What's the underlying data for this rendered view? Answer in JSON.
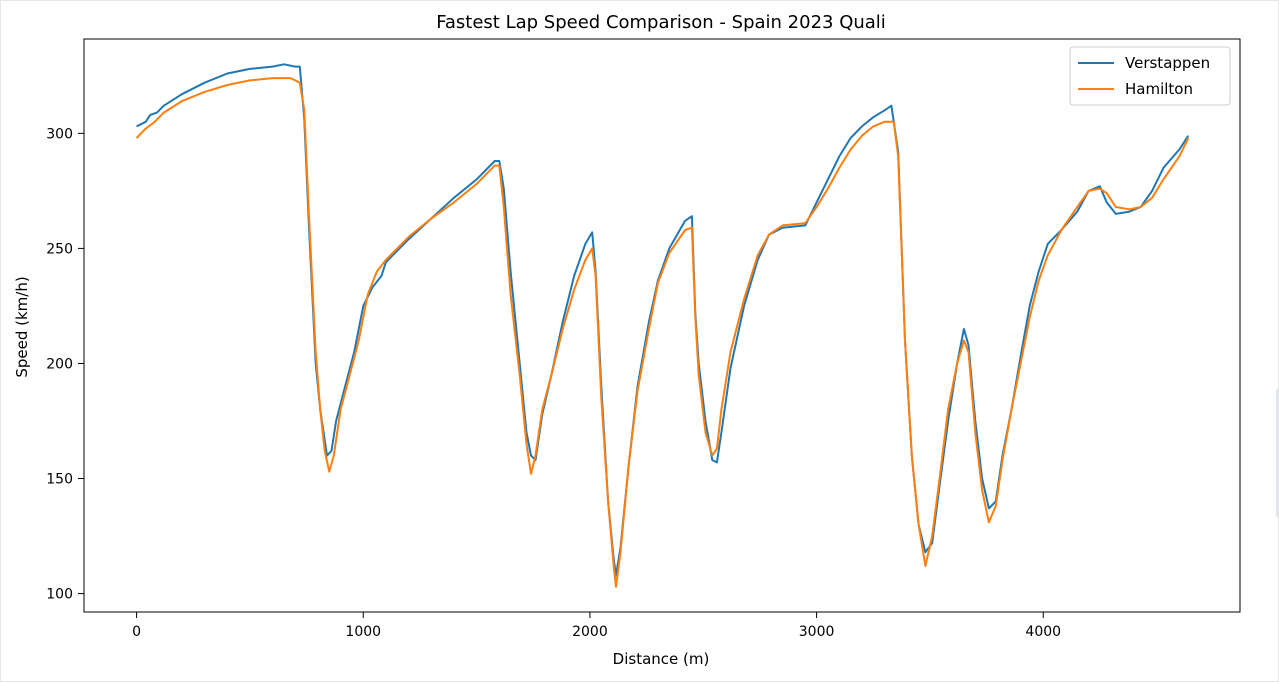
{
  "chart_data": {
    "type": "line",
    "title": "Fastest Lap Speed Comparison - Spain 2023 Quali",
    "xlabel": "Distance (m)",
    "ylabel": "Speed (km/h)",
    "xlim": [
      -232,
      4868
    ],
    "ylim": [
      92,
      341
    ],
    "xticks": [
      0,
      1000,
      2000,
      3000,
      4000
    ],
    "yticks": [
      100,
      150,
      200,
      250,
      300
    ],
    "grid": false,
    "legend_position": "top-right",
    "series": [
      {
        "name": "Verstappen",
        "color": "#1f77b4",
        "points": [
          [
            0,
            303
          ],
          [
            40,
            305
          ],
          [
            60,
            308
          ],
          [
            90,
            309
          ],
          [
            120,
            312
          ],
          [
            200,
            317
          ],
          [
            300,
            322
          ],
          [
            400,
            326
          ],
          [
            500,
            328
          ],
          [
            600,
            329
          ],
          [
            650,
            330
          ],
          [
            700,
            329
          ],
          [
            720,
            329
          ],
          [
            740,
            306
          ],
          [
            760,
            260
          ],
          [
            790,
            200
          ],
          [
            810,
            180
          ],
          [
            840,
            160
          ],
          [
            860,
            162
          ],
          [
            880,
            175
          ],
          [
            920,
            190
          ],
          [
            960,
            205
          ],
          [
            1000,
            225
          ],
          [
            1040,
            233
          ],
          [
            1080,
            238
          ],
          [
            1100,
            244
          ],
          [
            1200,
            254
          ],
          [
            1300,
            263
          ],
          [
            1400,
            272
          ],
          [
            1500,
            280
          ],
          [
            1580,
            288
          ],
          [
            1600,
            288
          ],
          [
            1620,
            276
          ],
          [
            1650,
            240
          ],
          [
            1690,
            200
          ],
          [
            1720,
            170
          ],
          [
            1740,
            160
          ],
          [
            1760,
            158
          ],
          [
            1790,
            178
          ],
          [
            1830,
            195
          ],
          [
            1880,
            218
          ],
          [
            1930,
            238
          ],
          [
            1980,
            252
          ],
          [
            2010,
            257
          ],
          [
            2025,
            240
          ],
          [
            2050,
            190
          ],
          [
            2080,
            140
          ],
          [
            2105,
            115
          ],
          [
            2115,
            108
          ],
          [
            2135,
            120
          ],
          [
            2170,
            155
          ],
          [
            2210,
            190
          ],
          [
            2260,
            218
          ],
          [
            2300,
            236
          ],
          [
            2350,
            250
          ],
          [
            2420,
            262
          ],
          [
            2450,
            264
          ],
          [
            2465,
            222
          ],
          [
            2480,
            200
          ],
          [
            2510,
            175
          ],
          [
            2540,
            158
          ],
          [
            2560,
            157
          ],
          [
            2580,
            170
          ],
          [
            2620,
            198
          ],
          [
            2680,
            225
          ],
          [
            2740,
            245
          ],
          [
            2790,
            256
          ],
          [
            2850,
            259
          ],
          [
            2950,
            260
          ],
          [
            3000,
            270
          ],
          [
            3050,
            280
          ],
          [
            3100,
            290
          ],
          [
            3150,
            298
          ],
          [
            3200,
            303
          ],
          [
            3250,
            307
          ],
          [
            3300,
            310
          ],
          [
            3330,
            312
          ],
          [
            3360,
            292
          ],
          [
            3390,
            210
          ],
          [
            3420,
            160
          ],
          [
            3450,
            130
          ],
          [
            3480,
            118
          ],
          [
            3510,
            122
          ],
          [
            3540,
            145
          ],
          [
            3580,
            175
          ],
          [
            3620,
            200
          ],
          [
            3650,
            215
          ],
          [
            3670,
            208
          ],
          [
            3700,
            175
          ],
          [
            3730,
            150
          ],
          [
            3760,
            137
          ],
          [
            3790,
            140
          ],
          [
            3820,
            160
          ],
          [
            3860,
            180
          ],
          [
            3900,
            203
          ],
          [
            3940,
            225
          ],
          [
            3980,
            240
          ],
          [
            4020,
            252
          ],
          [
            4080,
            258
          ],
          [
            4150,
            266
          ],
          [
            4200,
            275
          ],
          [
            4250,
            277
          ],
          [
            4280,
            270
          ],
          [
            4320,
            265
          ],
          [
            4380,
            266
          ],
          [
            4430,
            268
          ],
          [
            4480,
            275
          ],
          [
            4530,
            285
          ],
          [
            4600,
            293
          ],
          [
            4640,
            299
          ]
        ]
      },
      {
        "name": "Hamilton",
        "color": "#ff7f0e",
        "points": [
          [
            0,
            298
          ],
          [
            40,
            302
          ],
          [
            80,
            305
          ],
          [
            120,
            309
          ],
          [
            200,
            314
          ],
          [
            300,
            318
          ],
          [
            400,
            321
          ],
          [
            500,
            323
          ],
          [
            600,
            324
          ],
          [
            680,
            324
          ],
          [
            720,
            322
          ],
          [
            740,
            310
          ],
          [
            760,
            265
          ],
          [
            790,
            205
          ],
          [
            810,
            180
          ],
          [
            830,
            162
          ],
          [
            850,
            153
          ],
          [
            870,
            160
          ],
          [
            900,
            180
          ],
          [
            940,
            195
          ],
          [
            980,
            210
          ],
          [
            1020,
            230
          ],
          [
            1060,
            240
          ],
          [
            1100,
            245
          ],
          [
            1200,
            255
          ],
          [
            1300,
            263
          ],
          [
            1400,
            270
          ],
          [
            1500,
            278
          ],
          [
            1580,
            286
          ],
          [
            1600,
            286
          ],
          [
            1620,
            268
          ],
          [
            1650,
            230
          ],
          [
            1690,
            195
          ],
          [
            1720,
            165
          ],
          [
            1740,
            152
          ],
          [
            1760,
            160
          ],
          [
            1790,
            180
          ],
          [
            1830,
            195
          ],
          [
            1880,
            215
          ],
          [
            1930,
            232
          ],
          [
            1980,
            245
          ],
          [
            2010,
            250
          ],
          [
            2025,
            238
          ],
          [
            2050,
            185
          ],
          [
            2080,
            140
          ],
          [
            2105,
            112
          ],
          [
            2115,
            103
          ],
          [
            2135,
            118
          ],
          [
            2170,
            155
          ],
          [
            2210,
            188
          ],
          [
            2260,
            215
          ],
          [
            2300,
            235
          ],
          [
            2350,
            248
          ],
          [
            2420,
            258
          ],
          [
            2450,
            259
          ],
          [
            2465,
            220
          ],
          [
            2480,
            195
          ],
          [
            2510,
            170
          ],
          [
            2540,
            160
          ],
          [
            2560,
            163
          ],
          [
            2580,
            180
          ],
          [
            2620,
            205
          ],
          [
            2680,
            228
          ],
          [
            2740,
            247
          ],
          [
            2790,
            256
          ],
          [
            2850,
            260
          ],
          [
            2950,
            261
          ],
          [
            3000,
            268
          ],
          [
            3050,
            276
          ],
          [
            3100,
            285
          ],
          [
            3150,
            293
          ],
          [
            3200,
            299
          ],
          [
            3250,
            303
          ],
          [
            3300,
            305
          ],
          [
            3340,
            305
          ],
          [
            3360,
            290
          ],
          [
            3390,
            210
          ],
          [
            3420,
            160
          ],
          [
            3450,
            130
          ],
          [
            3480,
            112
          ],
          [
            3510,
            125
          ],
          [
            3540,
            148
          ],
          [
            3580,
            180
          ],
          [
            3620,
            200
          ],
          [
            3650,
            210
          ],
          [
            3670,
            205
          ],
          [
            3700,
            170
          ],
          [
            3730,
            145
          ],
          [
            3760,
            131
          ],
          [
            3790,
            138
          ],
          [
            3820,
            158
          ],
          [
            3860,
            180
          ],
          [
            3900,
            200
          ],
          [
            3940,
            220
          ],
          [
            3980,
            236
          ],
          [
            4020,
            247
          ],
          [
            4080,
            258
          ],
          [
            4150,
            268
          ],
          [
            4200,
            275
          ],
          [
            4250,
            276
          ],
          [
            4280,
            274
          ],
          [
            4320,
            268
          ],
          [
            4380,
            267
          ],
          [
            4430,
            268
          ],
          [
            4480,
            272
          ],
          [
            4530,
            280
          ],
          [
            4600,
            290
          ],
          [
            4640,
            298
          ]
        ]
      }
    ]
  }
}
